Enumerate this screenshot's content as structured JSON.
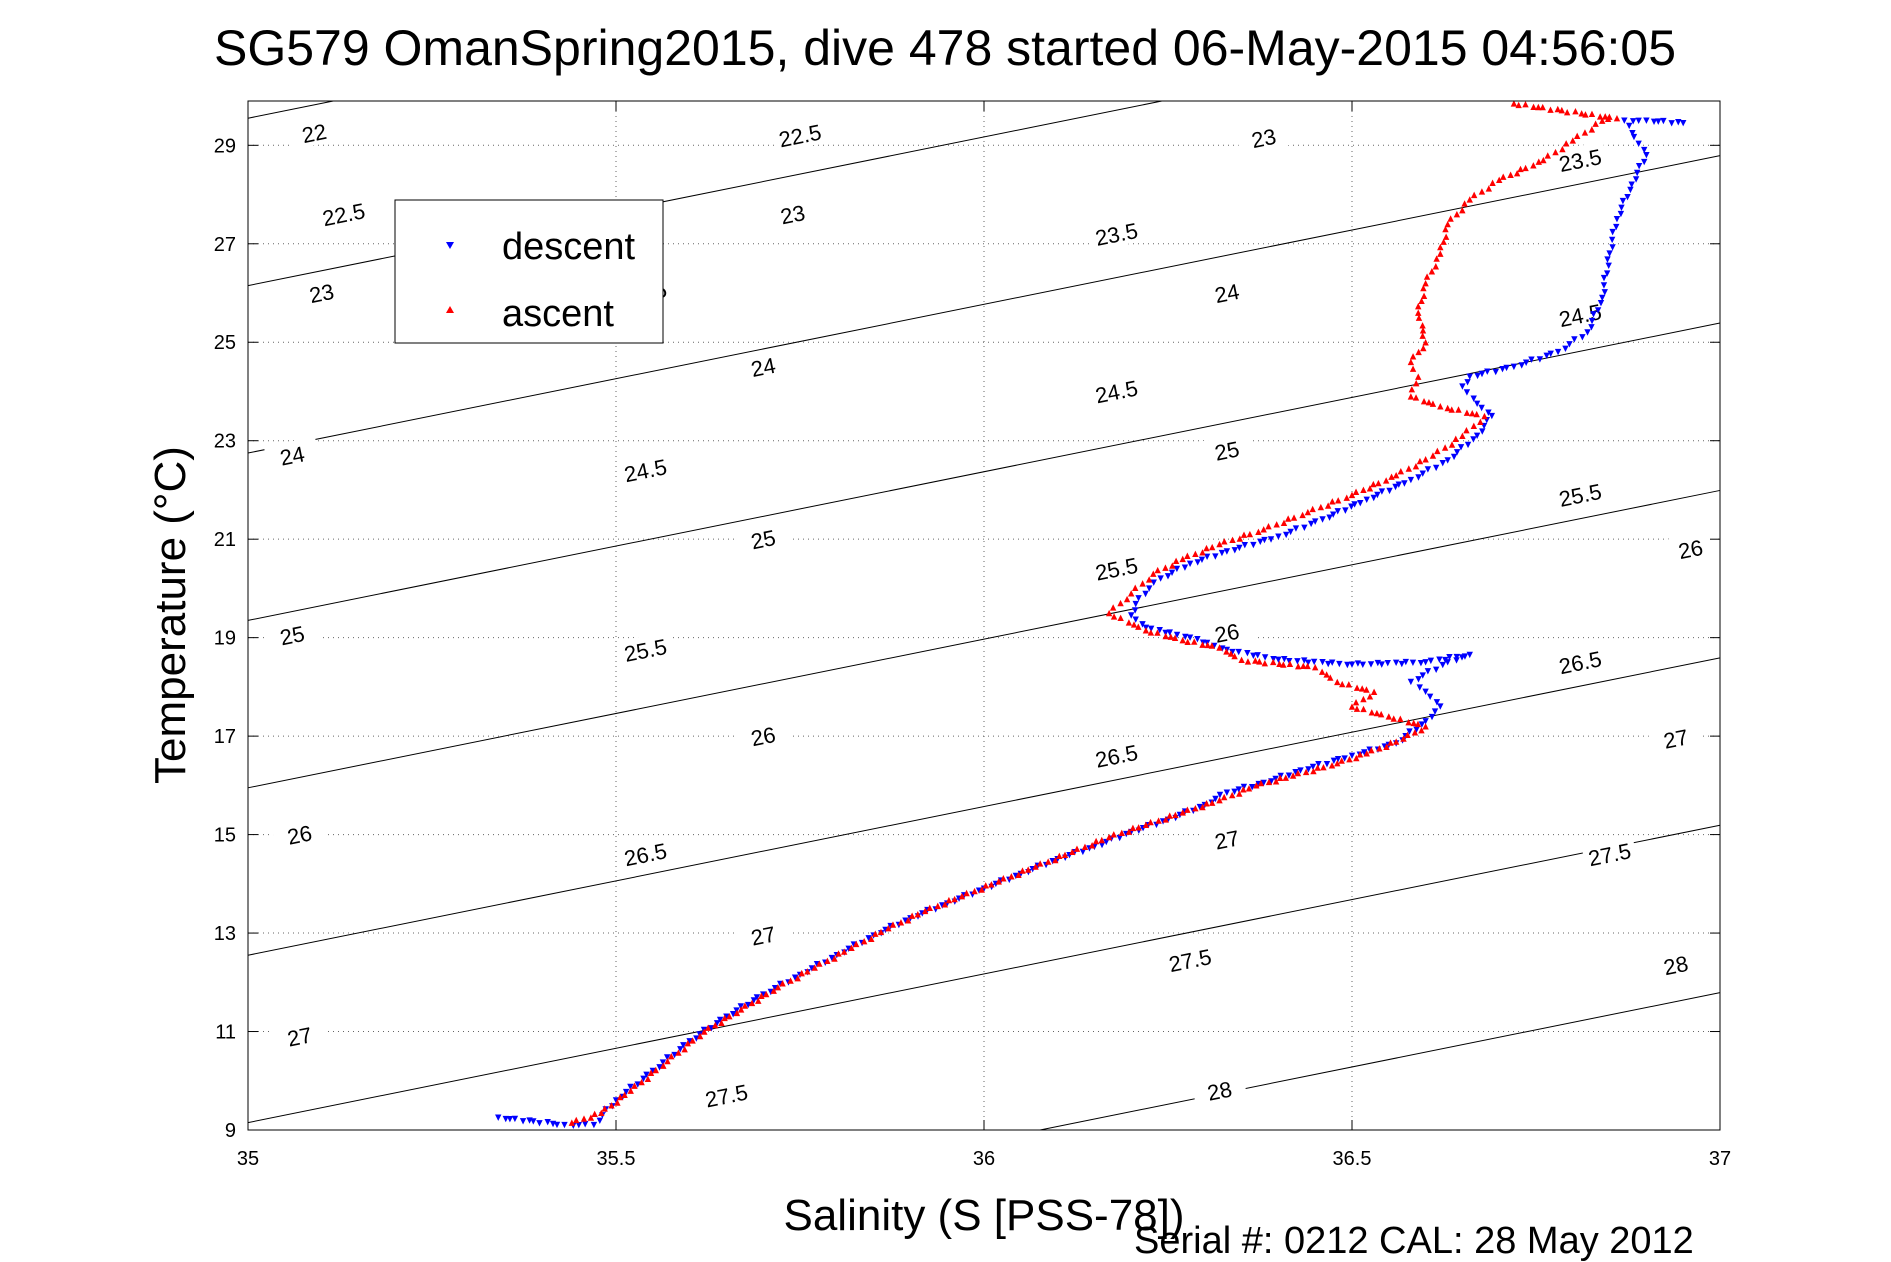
{
  "chart_data": {
    "type": "scatter",
    "title": "SG579 OmanSpring2015, dive 478 started 06-May-2015 04:56:05",
    "xlabel": "Salinity (S [PSS-78])",
    "ylabel": "Temperature (°C)",
    "xlim": [
      35,
      37
    ],
    "ylim": [
      9,
      29.9
    ],
    "xticks": [
      35,
      35.5,
      36,
      36.5,
      37
    ],
    "xtick_labels": [
      "35",
      "35.5",
      "36",
      "36.5",
      "37"
    ],
    "yticks": [
      9,
      11,
      13,
      15,
      17,
      19,
      21,
      23,
      25,
      27,
      29
    ],
    "ytick_labels": [
      "9",
      "11",
      "13",
      "15",
      "17",
      "19",
      "21",
      "23",
      "25",
      "27",
      "29"
    ],
    "grid": true,
    "legend_position": "top-left",
    "footer": "Serial #: 0212  CAL: 28 May 2012",
    "series": [
      {
        "name": "descent",
        "marker": "triangle-down",
        "color": "#0000ff",
        "points": [
          [
            35.34,
            9.25
          ],
          [
            35.43,
            9.1
          ],
          [
            35.47,
            9.1
          ],
          [
            35.5,
            9.6
          ],
          [
            35.55,
            10.2
          ],
          [
            35.6,
            10.8
          ],
          [
            35.65,
            11.3
          ],
          [
            35.7,
            11.75
          ],
          [
            35.75,
            12.15
          ],
          [
            35.8,
            12.55
          ],
          [
            35.85,
            12.95
          ],
          [
            35.9,
            13.3
          ],
          [
            35.95,
            13.6
          ],
          [
            36.0,
            13.9
          ],
          [
            36.05,
            14.2
          ],
          [
            36.1,
            14.5
          ],
          [
            36.15,
            14.75
          ],
          [
            36.2,
            15.05
          ],
          [
            36.25,
            15.3
          ],
          [
            36.3,
            15.6
          ],
          [
            36.33,
            15.85
          ],
          [
            36.38,
            16.05
          ],
          [
            36.43,
            16.3
          ],
          [
            36.5,
            16.6
          ],
          [
            36.56,
            16.85
          ],
          [
            36.6,
            17.3
          ],
          [
            36.62,
            17.6
          ],
          [
            36.6,
            17.9
          ],
          [
            36.58,
            18.1
          ],
          [
            36.63,
            18.5
          ],
          [
            36.66,
            18.65
          ],
          [
            36.6,
            18.5
          ],
          [
            36.5,
            18.45
          ],
          [
            36.4,
            18.55
          ],
          [
            36.33,
            18.75
          ],
          [
            36.28,
            19.0
          ],
          [
            36.22,
            19.2
          ],
          [
            36.2,
            19.45
          ],
          [
            36.21,
            19.8
          ],
          [
            36.24,
            20.2
          ],
          [
            36.28,
            20.5
          ],
          [
            36.33,
            20.75
          ],
          [
            36.4,
            21.05
          ],
          [
            36.46,
            21.4
          ],
          [
            36.52,
            21.8
          ],
          [
            36.58,
            22.2
          ],
          [
            36.63,
            22.6
          ],
          [
            36.67,
            23.1
          ],
          [
            36.69,
            23.5
          ],
          [
            36.67,
            23.75
          ],
          [
            36.65,
            24.1
          ],
          [
            36.66,
            24.3
          ],
          [
            36.72,
            24.5
          ],
          [
            36.78,
            24.8
          ],
          [
            36.82,
            25.2
          ],
          [
            36.84,
            25.9
          ],
          [
            36.85,
            26.8
          ],
          [
            36.86,
            27.5
          ],
          [
            36.88,
            28.2
          ],
          [
            36.9,
            28.8
          ],
          [
            36.87,
            29.5
          ],
          [
            36.9,
            29.5
          ],
          [
            36.95,
            29.45
          ]
        ]
      },
      {
        "name": "ascent",
        "marker": "triangle-up",
        "color": "#ff0000",
        "points": [
          [
            35.44,
            9.15
          ],
          [
            35.48,
            9.35
          ],
          [
            35.52,
            9.8
          ],
          [
            35.57,
            10.4
          ],
          [
            35.62,
            11.0
          ],
          [
            35.67,
            11.45
          ],
          [
            35.72,
            11.9
          ],
          [
            35.77,
            12.3
          ],
          [
            35.82,
            12.7
          ],
          [
            35.87,
            13.1
          ],
          [
            35.92,
            13.45
          ],
          [
            35.97,
            13.75
          ],
          [
            36.02,
            14.05
          ],
          [
            36.07,
            14.35
          ],
          [
            36.12,
            14.65
          ],
          [
            36.17,
            14.95
          ],
          [
            36.22,
            15.2
          ],
          [
            36.27,
            15.45
          ],
          [
            36.32,
            15.7
          ],
          [
            36.37,
            16.0
          ],
          [
            36.42,
            16.2
          ],
          [
            36.48,
            16.45
          ],
          [
            36.52,
            16.65
          ],
          [
            36.57,
            16.95
          ],
          [
            36.6,
            17.2
          ],
          [
            36.55,
            17.4
          ],
          [
            36.5,
            17.6
          ],
          [
            36.53,
            17.9
          ],
          [
            36.48,
            18.1
          ],
          [
            36.45,
            18.4
          ],
          [
            36.35,
            18.55
          ],
          [
            36.32,
            18.8
          ],
          [
            36.27,
            18.95
          ],
          [
            36.22,
            19.15
          ],
          [
            36.17,
            19.5
          ],
          [
            36.2,
            19.9
          ],
          [
            36.23,
            20.3
          ],
          [
            36.27,
            20.6
          ],
          [
            36.32,
            20.9
          ],
          [
            36.38,
            21.2
          ],
          [
            36.44,
            21.55
          ],
          [
            36.5,
            21.9
          ],
          [
            36.56,
            22.3
          ],
          [
            36.61,
            22.7
          ],
          [
            36.65,
            23.1
          ],
          [
            36.68,
            23.5
          ],
          [
            36.62,
            23.7
          ],
          [
            36.58,
            23.9
          ],
          [
            36.59,
            24.3
          ],
          [
            36.58,
            24.6
          ],
          [
            36.6,
            25.0
          ],
          [
            36.59,
            25.6
          ],
          [
            36.6,
            26.2
          ],
          [
            36.62,
            26.8
          ],
          [
            36.63,
            27.4
          ],
          [
            36.66,
            27.9
          ],
          [
            36.7,
            28.3
          ],
          [
            36.76,
            28.7
          ],
          [
            36.8,
            29.1
          ],
          [
            36.84,
            29.5
          ],
          [
            36.86,
            29.55
          ],
          [
            36.72,
            29.85
          ]
        ]
      }
    ],
    "density_contours": [
      {
        "label": "22",
        "label_pos": [
          35.09,
          29.25
        ]
      },
      {
        "label": "22.5",
        "label_pos": [
          35.13,
          27.6
        ]
      },
      {
        "label": "23",
        "label_pos": [
          35.1,
          26.0
        ]
      },
      {
        "label": "23.5",
        "label_pos": [
          35.54,
          26.0
        ]
      },
      {
        "label": "24",
        "label_pos": [
          35.06,
          22.7
        ]
      },
      {
        "label": "24.5",
        "label_pos": [
          35.54,
          22.4
        ]
      },
      {
        "label": "25",
        "label_pos": [
          35.06,
          19.05
        ]
      },
      {
        "label": "25.5",
        "label_pos": [
          35.54,
          18.75
        ]
      },
      {
        "label": "26",
        "label_pos": [
          35.07,
          15.0
        ]
      },
      {
        "label": "26.5",
        "label_pos": [
          35.54,
          14.6
        ]
      },
      {
        "label": "27",
        "label_pos": [
          35.07,
          10.9
        ]
      },
      {
        "label": "27.5",
        "label_pos": [
          35.65,
          9.7
        ]
      },
      {
        "label": "22.5",
        "label_pos": [
          35.75,
          29.2
        ]
      },
      {
        "label": "23",
        "label_pos": [
          35.74,
          27.6
        ]
      },
      {
        "label": "24",
        "label_pos": [
          35.7,
          24.5
        ]
      },
      {
        "label": "25",
        "label_pos": [
          35.7,
          21.0
        ]
      },
      {
        "label": "26",
        "label_pos": [
          35.7,
          17.0
        ]
      },
      {
        "label": "27",
        "label_pos": [
          35.7,
          12.95
        ]
      },
      {
        "label": "23",
        "label_pos": [
          36.38,
          29.15
        ]
      },
      {
        "label": "23.5",
        "label_pos": [
          36.18,
          27.2
        ]
      },
      {
        "label": "24",
        "label_pos": [
          36.33,
          26.0
        ]
      },
      {
        "label": "24.5",
        "label_pos": [
          36.18,
          24.0
        ]
      },
      {
        "label": "25",
        "label_pos": [
          36.33,
          22.8
        ]
      },
      {
        "label": "25.5",
        "label_pos": [
          36.18,
          20.4
        ]
      },
      {
        "label": "26",
        "label_pos": [
          36.33,
          19.1
        ]
      },
      {
        "label": "26.5",
        "label_pos": [
          36.18,
          16.6
        ]
      },
      {
        "label": "27",
        "label_pos": [
          36.33,
          14.9
        ]
      },
      {
        "label": "27.5",
        "label_pos": [
          36.28,
          12.45
        ]
      },
      {
        "label": "28",
        "label_pos": [
          36.32,
          9.8
        ]
      },
      {
        "label": "23.5",
        "label_pos": [
          36.81,
          28.7
        ]
      },
      {
        "label": "24.5",
        "label_pos": [
          36.81,
          25.55
        ]
      },
      {
        "label": "25.5",
        "label_pos": [
          36.81,
          21.9
        ]
      },
      {
        "label": "26",
        "label_pos": [
          36.96,
          20.8
        ]
      },
      {
        "label": "26.5",
        "label_pos": [
          36.81,
          18.5
        ]
      },
      {
        "label": "27",
        "label_pos": [
          36.94,
          16.95
        ]
      },
      {
        "label": "27.5",
        "label_pos": [
          36.85,
          14.6
        ]
      },
      {
        "label": "28",
        "label_pos": [
          36.94,
          12.35
        ]
      }
    ]
  }
}
